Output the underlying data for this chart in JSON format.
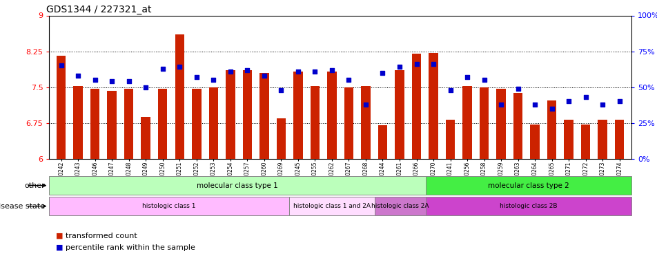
{
  "title": "GDS1344 / 227321_at",
  "samples": [
    "GSM60242",
    "GSM60243",
    "GSM60246",
    "GSM60247",
    "GSM60248",
    "GSM60249",
    "GSM60250",
    "GSM60251",
    "GSM60252",
    "GSM60253",
    "GSM60254",
    "GSM60257",
    "GSM60260",
    "GSM60269",
    "GSM60245",
    "GSM60255",
    "GSM60262",
    "GSM60267",
    "GSM60268",
    "GSM60244",
    "GSM60261",
    "GSM60266",
    "GSM60270",
    "GSM60241",
    "GSM60256",
    "GSM60258",
    "GSM60259",
    "GSM60263",
    "GSM60264",
    "GSM60265",
    "GSM60271",
    "GSM60272",
    "GSM60273",
    "GSM60274"
  ],
  "bar_values": [
    8.15,
    7.52,
    7.47,
    7.42,
    7.47,
    6.88,
    7.47,
    8.6,
    7.47,
    7.5,
    7.85,
    7.85,
    7.8,
    6.85,
    7.82,
    7.52,
    7.82,
    7.5,
    7.52,
    6.7,
    7.85,
    8.2,
    8.22,
    6.82,
    7.52,
    7.5,
    7.47,
    7.38,
    6.72,
    7.22,
    6.82,
    6.72,
    6.82,
    6.82
  ],
  "percentile_values": [
    65,
    58,
    55,
    54,
    54,
    50,
    63,
    64,
    57,
    55,
    61,
    62,
    58,
    48,
    61,
    61,
    62,
    55,
    38,
    60,
    64,
    66,
    66,
    48,
    57,
    55,
    38,
    49,
    38,
    35,
    40,
    43,
    38,
    40
  ],
  "ylim_left": [
    6,
    9
  ],
  "ylim_right": [
    0,
    100
  ],
  "yticks_left": [
    6,
    6.75,
    7.5,
    8.25,
    9
  ],
  "yticks_right": [
    0,
    25,
    50,
    75,
    100
  ],
  "hlines": [
    6.75,
    7.5,
    8.25
  ],
  "bar_color": "#cc2200",
  "marker_color": "#0000cc",
  "bar_bottom": 6.0,
  "molecular_classes": [
    {
      "label": "molecular class type 1",
      "start": 0,
      "end": 22,
      "color": "#bbffbb"
    },
    {
      "label": "molecular class type 2",
      "start": 22,
      "end": 34,
      "color": "#44ee44"
    }
  ],
  "disease_classes": [
    {
      "label": "histologic class 1",
      "start": 0,
      "end": 14,
      "color": "#ffbbff"
    },
    {
      "label": "histologic class 1 and 2A",
      "start": 14,
      "end": 19,
      "color": "#ffddff"
    },
    {
      "label": "histologic class 2A",
      "start": 19,
      "end": 22,
      "color": "#cc77cc"
    },
    {
      "label": "histologic class 2B",
      "start": 22,
      "end": 34,
      "color": "#cc44cc"
    }
  ],
  "other_label": "other",
  "disease_label": "disease state",
  "legend_items": [
    {
      "label": "transformed count",
      "color": "#cc2200",
      "marker": "s"
    },
    {
      "label": "percentile rank within the sample",
      "color": "#0000cc",
      "marker": "s"
    }
  ]
}
